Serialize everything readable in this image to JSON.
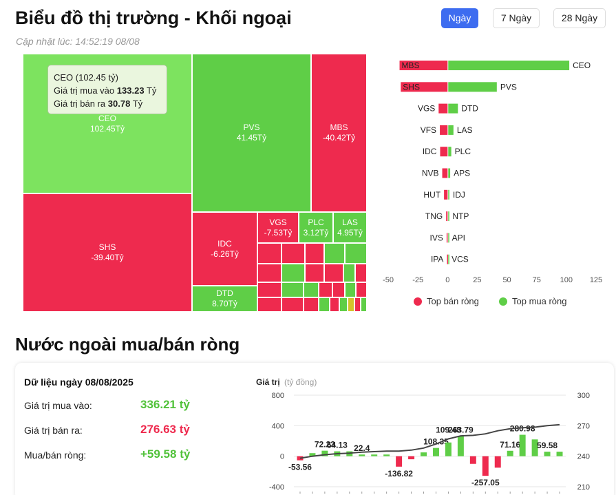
{
  "header": {
    "title": "Biểu đồ thị trường - Khối ngoại",
    "updated": "Cập nhật lúc: 14:52:19 08/08"
  },
  "periods": [
    {
      "label": "Ngày",
      "active": true
    },
    {
      "label": "7 Ngày",
      "active": false
    },
    {
      "label": "28 Ngày",
      "active": false
    }
  ],
  "colors": {
    "buy": "#5fce47",
    "buy_light": "#7de35f",
    "sell": "#ee2a4e",
    "line": "#444444"
  },
  "treemap": {
    "tiles": [
      {
        "code": "CEO",
        "value": "102.45Tỷ",
        "side": "buy",
        "highlight": true
      },
      {
        "code": "PVS",
        "value": "41.45Tỷ",
        "side": "buy"
      },
      {
        "code": "MBS",
        "value": "-40.42Tỷ",
        "side": "sell"
      },
      {
        "code": "SHS",
        "value": "-39.40Tỷ",
        "side": "sell"
      },
      {
        "code": "IDC",
        "value": "-6.26Tỷ",
        "side": "sell"
      },
      {
        "code": "VGS",
        "value": "-7.53Tỷ",
        "side": "sell"
      },
      {
        "code": "PLC",
        "value": "3.12Tỷ",
        "side": "buy"
      },
      {
        "code": "LAS",
        "value": "4.95Tỷ",
        "side": "buy"
      },
      {
        "code": "DTD",
        "value": "8.70Tỷ",
        "side": "buy"
      }
    ],
    "tooltip": {
      "title": "CEO (102.45 tỷ)",
      "buy_label": "Giá trị mua vào",
      "buy_value": "133.23",
      "buy_unit": "Tỷ",
      "sell_label": "Giá trị bán ra",
      "sell_value": "30.78",
      "sell_unit": "Tỷ"
    }
  },
  "chart_data": [
    {
      "type": "bar",
      "orientation": "horizontal",
      "xlim": [
        -50,
        125
      ],
      "xticks": [
        -50,
        -25,
        0,
        25,
        50,
        75,
        100,
        125
      ],
      "rows": [
        {
          "sell_code": "MBS",
          "sell": -40.42,
          "buy_code": "CEO",
          "buy": 102.45
        },
        {
          "sell_code": "SHS",
          "sell": -39.4,
          "buy_code": "PVS",
          "buy": 41.45
        },
        {
          "sell_code": "VGS",
          "sell": -7.53,
          "buy_code": "DTD",
          "buy": 8.7
        },
        {
          "sell_code": "VFS",
          "sell": -6.5,
          "buy_code": "LAS",
          "buy": 4.95
        },
        {
          "sell_code": "IDC",
          "sell": -6.26,
          "buy_code": "PLC",
          "buy": 3.12
        },
        {
          "sell_code": "NVB",
          "sell": -4.5,
          "buy_code": "APS",
          "buy": 2.2
        },
        {
          "sell_code": "HUT",
          "sell": -3.0,
          "buy_code": "IDJ",
          "buy": 1.5
        },
        {
          "sell_code": "TNG",
          "sell": -1.2,
          "buy_code": "NTP",
          "buy": 1.2
        },
        {
          "sell_code": "IVS",
          "sell": -0.8,
          "buy_code": "API",
          "buy": 0.8
        },
        {
          "sell_code": "IPA",
          "sell": -0.5,
          "buy_code": "VCS",
          "buy": 0.5
        }
      ],
      "legend": [
        "Top bán ròng",
        "Top mua ròng"
      ],
      "legend_position": "bottom"
    },
    {
      "type": "bar",
      "ylabel": "Giá trị",
      "yunit": "(tỷ đồng)",
      "ylim": [
        -400,
        800
      ],
      "yticks": [
        -400,
        0,
        400,
        800
      ],
      "y2lim": [
        210,
        300
      ],
      "y2ticks": [
        210,
        240,
        270,
        300
      ],
      "values": [
        -53.56,
        40,
        72.23,
        64.13,
        64.13,
        22.4,
        22.4,
        22.4,
        -136.82,
        -40,
        50,
        108.35,
        180,
        263.79,
        -100,
        -257.05,
        -150,
        71.16,
        280.98,
        220,
        59.58,
        59.58
      ],
      "labels": [
        "-53.56",
        "",
        "72.23",
        "64.13",
        "",
        "22.4",
        "",
        "",
        "-136.82",
        "",
        "",
        "108.35",
        "",
        "263.79",
        "",
        "-257.05",
        "",
        "71.16",
        "280.98",
        "",
        "59.58",
        ""
      ],
      "extra_label": "109.48",
      "line": [
        238,
        240,
        241.5,
        242.5,
        243,
        244,
        244.5,
        245,
        245,
        246,
        248,
        252,
        257,
        260,
        260.5,
        262,
        265,
        267,
        268,
        268.5,
        270,
        271
      ]
    }
  ],
  "summary": {
    "date": "Dữ liệu ngày 08/08/2025",
    "buy_label": "Giá trị mua vào:",
    "buy_value": "336.21 tỷ",
    "sell_label": "Giá trị bán ra:",
    "sell_value": "276.63 tỷ",
    "net_label": "Mua/bán ròng:",
    "net_value": "+59.58 tỷ"
  },
  "net_section": {
    "title": "Nước ngoài mua/bán ròng"
  }
}
